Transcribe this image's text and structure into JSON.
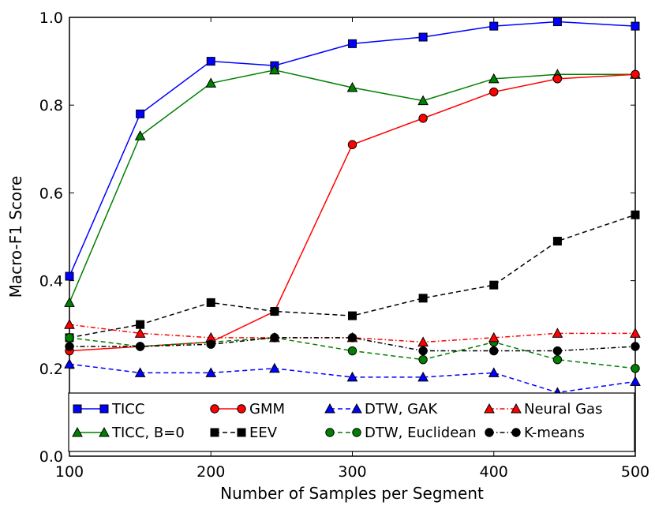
{
  "chart_data": {
    "type": "line",
    "title": "",
    "xlabel": "Number of Samples per Segment",
    "ylabel": "Macro-F1 Score",
    "xlim": [
      100,
      500
    ],
    "ylim": [
      0.0,
      1.0
    ],
    "xticks": [
      100,
      200,
      300,
      400,
      500
    ],
    "yticks": [
      0.0,
      0.2,
      0.4,
      0.6,
      0.8,
      1.0
    ],
    "xtick_labels": [
      "100",
      "200",
      "300",
      "400",
      "500"
    ],
    "ytick_labels": [
      "0.0",
      "0.2",
      "0.4",
      "0.6",
      "0.8",
      "1.0"
    ],
    "grid": false,
    "legend_position": "bottom",
    "x": [
      100,
      150,
      200,
      245,
      300,
      350,
      400,
      445,
      500
    ],
    "series": [
      {
        "name": "TICC",
        "color": "#0000ff",
        "marker": "square",
        "line_style": "solid",
        "values": [
          0.41,
          0.78,
          0.9,
          0.89,
          0.94,
          0.955,
          0.98,
          0.99,
          0.98
        ]
      },
      {
        "name": "TICC, B=0",
        "color": "#008000",
        "marker": "triangle",
        "line_style": "solid",
        "values": [
          0.35,
          0.73,
          0.85,
          0.88,
          0.84,
          0.81,
          0.86,
          0.87,
          0.87
        ]
      },
      {
        "name": "GMM",
        "color": "#ff0000",
        "marker": "circle",
        "line_style": "solid",
        "values": [
          0.24,
          0.25,
          0.26,
          0.33,
          0.71,
          0.77,
          0.83,
          0.86,
          0.87
        ]
      },
      {
        "name": "EEV",
        "color": "#000000",
        "marker": "square",
        "line_style": "dashed",
        "values": [
          0.27,
          0.3,
          0.35,
          0.33,
          0.32,
          0.36,
          0.39,
          0.49,
          0.55
        ]
      },
      {
        "name": "DTW, GAK",
        "color": "#0000ff",
        "marker": "triangle",
        "line_style": "dashed",
        "values": [
          0.21,
          0.19,
          0.19,
          0.2,
          0.18,
          0.18,
          0.19,
          0.145,
          0.17
        ]
      },
      {
        "name": "DTW, Euclidean",
        "color": "#008000",
        "marker": "circle",
        "line_style": "dashed",
        "values": [
          0.27,
          0.25,
          0.26,
          0.27,
          0.24,
          0.22,
          0.26,
          0.22,
          0.2
        ]
      },
      {
        "name": "Neural Gas",
        "color": "#ff0000",
        "marker": "triangle",
        "line_style": "dashdot",
        "values": [
          0.3,
          0.28,
          0.27,
          0.27,
          0.27,
          0.26,
          0.27,
          0.28,
          0.28
        ]
      },
      {
        "name": "K-means",
        "color": "#000000",
        "marker": "circle",
        "line_style": "dashdot",
        "values": [
          0.25,
          0.25,
          0.255,
          0.27,
          0.27,
          0.24,
          0.24,
          0.24,
          0.25
        ]
      }
    ]
  }
}
